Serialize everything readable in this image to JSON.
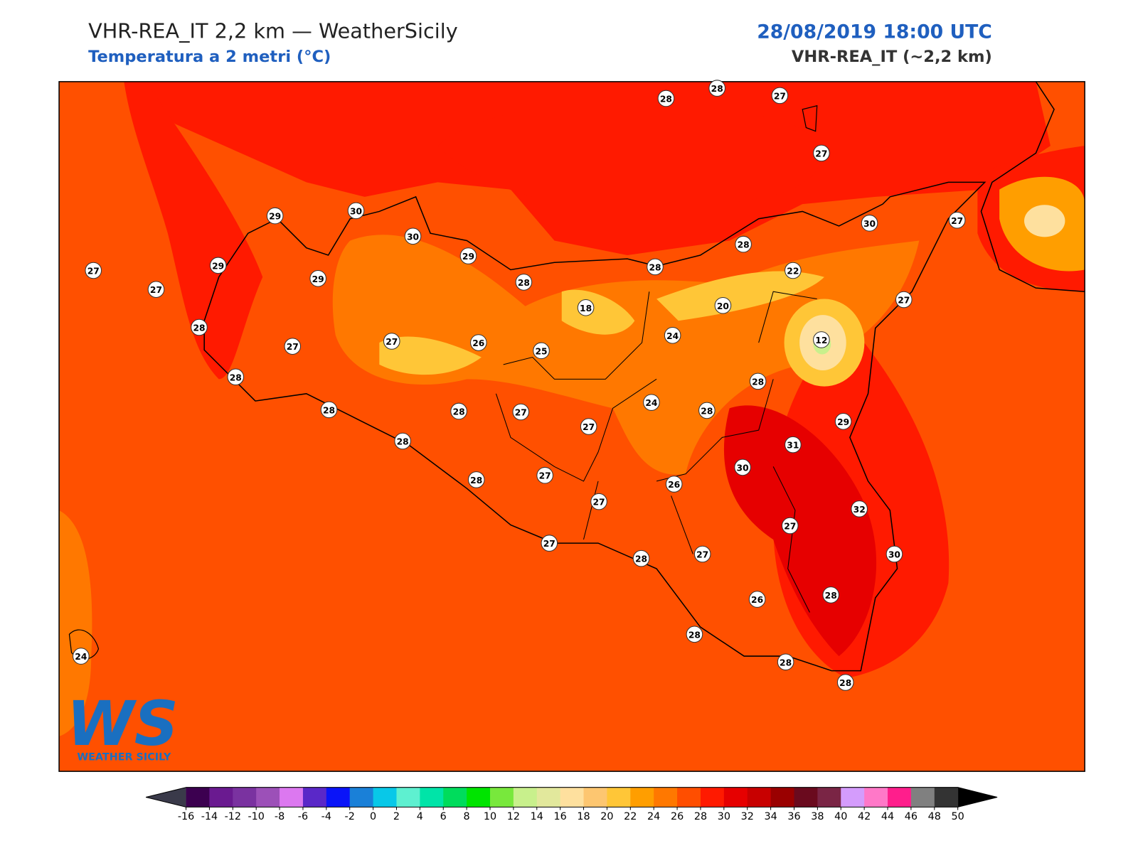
{
  "header": {
    "title": "VHR-REA_IT 2,2 km — WeatherSicily",
    "subtitle": "Temperatura a 2 metri (°C)",
    "datetime": "28/08/2019 18:00 UTC",
    "model": "VHR-REA_IT (~2,2 km)"
  },
  "stations": [
    28,
    28,
    27,
    27,
    29,
    30,
    30,
    29,
    29,
    29,
    27,
    27,
    28,
    28,
    28,
    30,
    27,
    22,
    20,
    18,
    27,
    24,
    12,
    28,
    27,
    27,
    26,
    25,
    28,
    28,
    24,
    28,
    28,
    28,
    27,
    27,
    29,
    31,
    28,
    30,
    27,
    28,
    26,
    27,
    32,
    27,
    27,
    28,
    27,
    30,
    28,
    26,
    28,
    24,
    28,
    28
  ],
  "colorbar": {
    "ticks": [
      -16,
      -14,
      -12,
      -10,
      -8,
      -6,
      -4,
      -2,
      0,
      2,
      4,
      6,
      8,
      10,
      12,
      14,
      16,
      18,
      20,
      22,
      24,
      26,
      28,
      30,
      32,
      34,
      36,
      38,
      40,
      42,
      44,
      46,
      48,
      50
    ],
    "colors": [
      "#3c0050",
      "#6a1a90",
      "#7a32a0",
      "#9c50b8",
      "#dc78f0",
      "#5a28c8",
      "#0a14f8",
      "#1a80d8",
      "#08c8e8",
      "#5ef0d0",
      "#00e4a8",
      "#00dc5c",
      "#00e400",
      "#78e83c",
      "#c8f08c",
      "#e2e89c",
      "#fee09e",
      "#fdc670",
      "#ffc637",
      "#ff9e00",
      "#ff7800",
      "#ff4e00",
      "#ff1a00",
      "#e60000",
      "#c80000",
      "#9a0000",
      "#6a0a1e",
      "#7a2545",
      "#d49cfc",
      "#ff78c8",
      "#ff1e8c",
      "#808080",
      "#333333"
    ],
    "under_color": "#3a3a4a",
    "over_color": "#000000"
  },
  "logo": {
    "mark": "WS",
    "text": "WEATHER SICILY"
  }
}
